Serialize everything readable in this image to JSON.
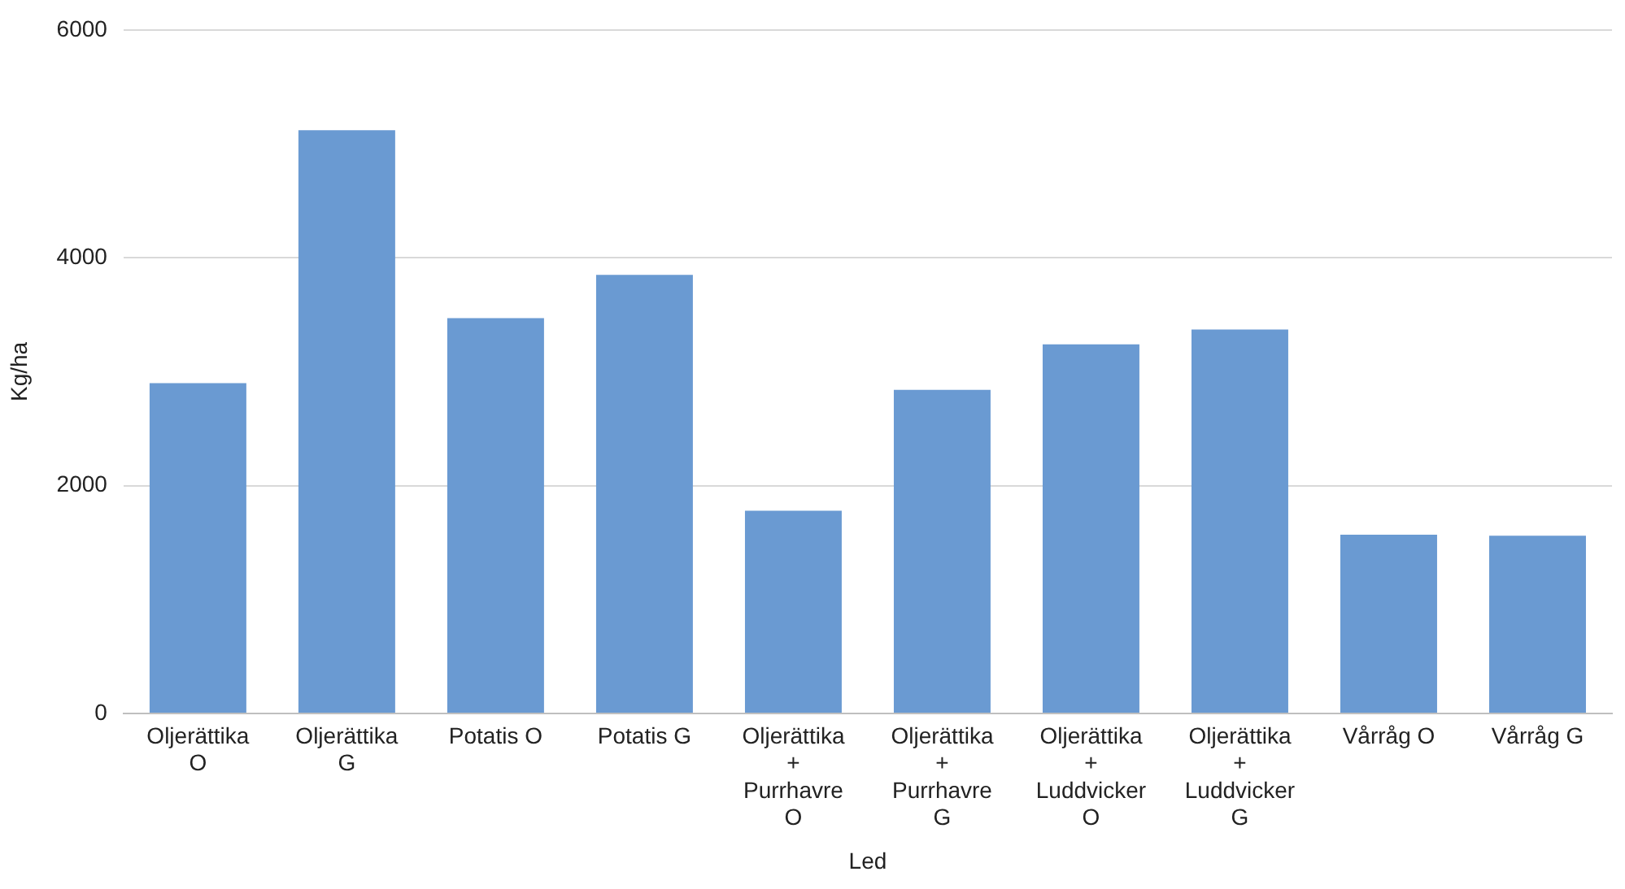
{
  "chart_data": {
    "type": "bar",
    "xlabel": "Led",
    "ylabel": "Kg/ha",
    "categories": [
      "Oljerättika\nO",
      "Oljerättika\nG",
      "Potatis O",
      "Potatis G",
      "Oljerättika\n+\nPurrhavre\nO",
      "Oljerättika\n+\nPurrhavre\nG",
      "Oljerättika\n+\nLuddvicker\nO",
      "Oljerättika\n+\nLuddvicker\nG",
      "Vårråg O",
      "Vårråg G"
    ],
    "values": [
      2900,
      5120,
      3470,
      3850,
      1780,
      2840,
      3240,
      3370,
      1570,
      1560
    ],
    "color": "#6a9ad2",
    "ylim": [
      0,
      6000
    ],
    "yticks": [
      0,
      2000,
      4000,
      6000
    ],
    "grid": "y",
    "legend": false
  }
}
